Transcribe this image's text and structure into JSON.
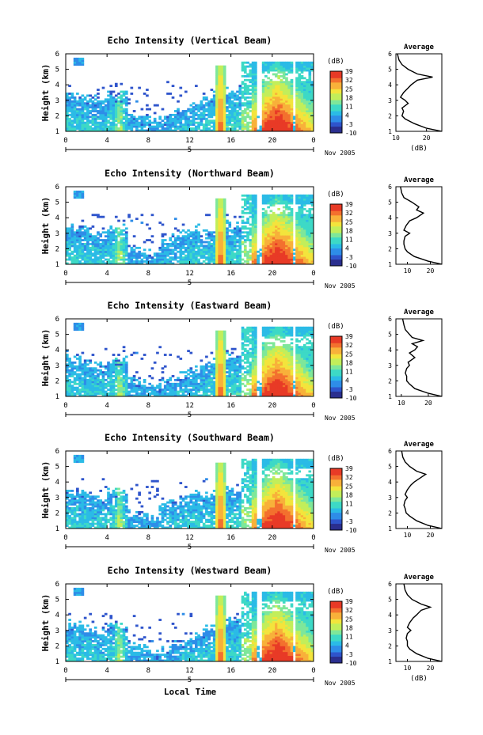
{
  "figure": {
    "xlabel": "Local Time",
    "date_label": "Nov 2005",
    "ylabel": "Height (km)",
    "avg_title": "Average",
    "avg_xlabel": "(dB)",
    "colorbar_unit": "(dB)",
    "colors": {
      "colormap": [
        "#2b2f8f",
        "#2f55cc",
        "#2e8de8",
        "#2bbbe6",
        "#3dd9c6",
        "#7ee79a",
        "#c2ee5a",
        "#f3e43c",
        "#f8b13a",
        "#f3702e",
        "#e83a26"
      ],
      "axis": "#000000"
    }
  },
  "chart_data": [
    {
      "type": "heatmap",
      "title": "Echo Intensity (Vertical Beam)",
      "x_ticks": [
        "0",
        "4",
        "8",
        "12",
        "16",
        "20",
        "0"
      ],
      "x_day_label": "5",
      "y_ticks": [
        "1",
        "2",
        "3",
        "4",
        "5",
        "6"
      ],
      "ylim": [
        1,
        6
      ],
      "xlim_hours": [
        0,
        24
      ],
      "colorbar_ticks": [
        "39",
        "32",
        "25",
        "18",
        "11",
        "4",
        "-3",
        "-10"
      ],
      "colorbar_range": [
        -10,
        39
      ],
      "avg_profile": {
        "x_ticks": [
          "10",
          "20"
        ],
        "xlim": [
          10,
          25
        ],
        "y_ticks": [
          "1",
          "2",
          "3",
          "4",
          "5",
          "6"
        ],
        "ylim": [
          1,
          6
        ],
        "height_km": [
          1.0,
          1.2,
          1.5,
          1.8,
          2.0,
          2.3,
          2.5,
          2.8,
          3.0,
          3.2,
          3.5,
          3.8,
          4.0,
          4.3,
          4.5,
          4.7,
          5.0,
          5.3,
          5.6,
          6.0
        ],
        "db": [
          25,
          20,
          16,
          13,
          12,
          12.5,
          12,
          14,
          13,
          11.5,
          12.5,
          14,
          15,
          17,
          22,
          17,
          14,
          12,
          11,
          10.5
        ]
      }
    },
    {
      "type": "heatmap",
      "title": "Echo Intensity (Northward Beam)",
      "x_ticks": [
        "0",
        "4",
        "8",
        "12",
        "16",
        "20",
        "0"
      ],
      "x_day_label": "5",
      "y_ticks": [
        "1",
        "2",
        "3",
        "4",
        "5",
        "6"
      ],
      "ylim": [
        1,
        6
      ],
      "xlim_hours": [
        0,
        24
      ],
      "colorbar_ticks": [
        "39",
        "32",
        "25",
        "18",
        "11",
        "4",
        "-3",
        "-10"
      ],
      "colorbar_range": [
        -10,
        39
      ],
      "avg_profile": {
        "x_ticks": [
          "10",
          "20"
        ],
        "xlim": [
          5,
          25
        ],
        "y_ticks": [
          "1",
          "2",
          "3",
          "4",
          "5",
          "6"
        ],
        "ylim": [
          1,
          6
        ],
        "height_km": [
          1.0,
          1.2,
          1.5,
          1.8,
          2.0,
          2.3,
          2.5,
          2.8,
          3.0,
          3.2,
          3.5,
          3.8,
          4.0,
          4.3,
          4.5,
          4.7,
          5.0,
          5.3,
          5.6,
          6.0
        ],
        "db": [
          25,
          19,
          13,
          10,
          9,
          8.5,
          8.5,
          9,
          11,
          8.5,
          9.5,
          11,
          14,
          17,
          14,
          15,
          12,
          8.5,
          7.5,
          7
        ]
      }
    },
    {
      "type": "heatmap",
      "title": "Echo Intensity (Eastward Beam)",
      "x_ticks": [
        "0",
        "4",
        "8",
        "12",
        "16",
        "20",
        "0"
      ],
      "x_day_label": "5",
      "y_ticks": [
        "1",
        "2",
        "3",
        "4",
        "5",
        "6"
      ],
      "ylim": [
        1,
        6
      ],
      "xlim_hours": [
        0,
        24
      ],
      "colorbar_ticks": [
        "39",
        "32",
        "25",
        "18",
        "11",
        "4",
        "-3",
        "-10"
      ],
      "colorbar_range": [
        -10,
        39
      ],
      "avg_profile": {
        "x_ticks": [
          "10",
          "20"
        ],
        "xlim": [
          8,
          25
        ],
        "y_ticks": [
          "1",
          "2",
          "3",
          "4",
          "5",
          "6"
        ],
        "ylim": [
          1,
          6
        ],
        "height_km": [
          1.0,
          1.2,
          1.5,
          1.8,
          2.0,
          2.3,
          2.5,
          2.8,
          3.0,
          3.2,
          3.5,
          3.8,
          4.0,
          4.2,
          4.4,
          4.6,
          4.8,
          5.0,
          5.3,
          5.6,
          6.0
        ],
        "db": [
          25,
          20,
          15,
          13,
          12,
          12,
          11.5,
          12,
          13,
          12.5,
          15,
          13,
          15,
          16,
          14,
          18,
          14,
          13,
          11.5,
          11,
          10.5
        ]
      }
    },
    {
      "type": "heatmap",
      "title": "Echo Intensity (Southward Beam)",
      "x_ticks": [
        "0",
        "4",
        "8",
        "12",
        "16",
        "20",
        "0"
      ],
      "x_day_label": "5",
      "y_ticks": [
        "1",
        "2",
        "3",
        "4",
        "5",
        "6"
      ],
      "ylim": [
        1,
        6
      ],
      "xlim_hours": [
        0,
        24
      ],
      "colorbar_ticks": [
        "39",
        "32",
        "25",
        "18",
        "11",
        "4",
        "-3",
        "-10"
      ],
      "colorbar_range": [
        -10,
        39
      ],
      "avg_profile": {
        "x_ticks": [
          "10",
          "20"
        ],
        "xlim": [
          5,
          25
        ],
        "y_ticks": [
          "1",
          "2",
          "3",
          "4",
          "5",
          "6"
        ],
        "ylim": [
          1,
          6
        ],
        "height_km": [
          1.0,
          1.2,
          1.5,
          1.8,
          2.0,
          2.3,
          2.5,
          2.8,
          3.0,
          3.2,
          3.5,
          3.8,
          4.0,
          4.3,
          4.5,
          4.7,
          5.0,
          5.3,
          5.6,
          6.0
        ],
        "db": [
          25,
          19,
          14,
          11,
          9.5,
          9,
          8.5,
          9,
          10,
          9,
          10,
          11.5,
          13,
          16,
          18,
          14,
          11,
          9,
          8,
          7.5
        ]
      }
    },
    {
      "type": "heatmap",
      "title": "Echo Intensity (Westward Beam)",
      "x_ticks": [
        "0",
        "4",
        "8",
        "12",
        "16",
        "20",
        "0"
      ],
      "x_day_label": "5",
      "y_ticks": [
        "1",
        "2",
        "3",
        "4",
        "5",
        "6"
      ],
      "ylim": [
        1,
        6
      ],
      "xlim_hours": [
        0,
        24
      ],
      "colorbar_ticks": [
        "39",
        "32",
        "25",
        "18",
        "11",
        "4",
        "-3",
        "-10"
      ],
      "colorbar_range": [
        -10,
        39
      ],
      "avg_profile": {
        "x_ticks": [
          "10",
          "20"
        ],
        "xlim": [
          5,
          25
        ],
        "y_ticks": [
          "1",
          "2",
          "3",
          "4",
          "5",
          "6"
        ],
        "ylim": [
          1,
          6
        ],
        "height_km": [
          1.0,
          1.2,
          1.5,
          1.8,
          2.0,
          2.3,
          2.5,
          2.8,
          3.0,
          3.2,
          3.5,
          3.8,
          4.0,
          4.3,
          4.5,
          4.7,
          5.0,
          5.3,
          5.6,
          6.0
        ],
        "db": [
          25,
          19,
          14,
          11,
          10,
          10,
          9.5,
          10,
          11.5,
          10,
          11,
          12.5,
          14,
          16,
          20,
          16,
          12,
          10,
          9,
          8.5
        ]
      }
    }
  ]
}
